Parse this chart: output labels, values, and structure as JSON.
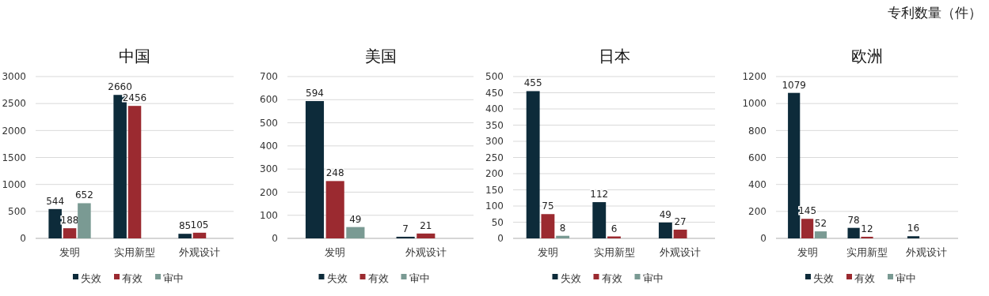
{
  "chart_data": [
    {
      "type": "bar",
      "title": "中国",
      "categories": [
        "发明",
        "实用新型",
        "外观设计"
      ],
      "series": [
        {
          "name": "失效",
          "color": "#0d2b3a",
          "values": [
            544,
            2660,
            85
          ]
        },
        {
          "name": "有效",
          "color": "#9b2a30",
          "values": [
            188,
            2456,
            105
          ]
        },
        {
          "name": "审中",
          "color": "#7a9a93",
          "values": [
            652,
            null,
            null
          ]
        }
      ],
      "ylim": [
        0,
        3000
      ],
      "yticks": [
        0,
        500,
        1000,
        1500,
        2000,
        2500,
        3000
      ],
      "grid": "y",
      "legend": "bottom",
      "data_labels": true
    },
    {
      "type": "bar",
      "title": "美国",
      "categories": [
        "发明",
        "外观设计"
      ],
      "series": [
        {
          "name": "失效",
          "color": "#0d2b3a",
          "values": [
            594,
            7
          ]
        },
        {
          "name": "有效",
          "color": "#9b2a30",
          "values": [
            248,
            21
          ]
        },
        {
          "name": "审中",
          "color": "#7a9a93",
          "values": [
            49,
            null
          ]
        }
      ],
      "ylim": [
        0,
        700
      ],
      "yticks": [
        0,
        100,
        200,
        300,
        400,
        500,
        600,
        700
      ],
      "grid": "y",
      "legend": "bottom",
      "data_labels": true
    },
    {
      "type": "bar",
      "title": "日本",
      "categories": [
        "发明",
        "实用新型",
        "外观设计"
      ],
      "series": [
        {
          "name": "失效",
          "color": "#0d2b3a",
          "values": [
            455,
            112,
            49
          ]
        },
        {
          "name": "有效",
          "color": "#9b2a30",
          "values": [
            75,
            6,
            27
          ]
        },
        {
          "name": "审中",
          "color": "#7a9a93",
          "values": [
            8,
            null,
            null
          ]
        }
      ],
      "ylim": [
        0,
        500
      ],
      "yticks": [
        0,
        50,
        100,
        150,
        200,
        250,
        300,
        350,
        400,
        450,
        500
      ],
      "grid": "y",
      "legend": "bottom",
      "data_labels": true
    },
    {
      "type": "bar",
      "title": "欧洲",
      "categories": [
        "发明",
        "实用新型",
        "外观设计"
      ],
      "series": [
        {
          "name": "失效",
          "color": "#0d2b3a",
          "values": [
            1079,
            78,
            16
          ]
        },
        {
          "name": "有效",
          "color": "#9b2a30",
          "values": [
            145,
            12,
            null
          ]
        },
        {
          "name": "审中",
          "color": "#7a9a93",
          "values": [
            52,
            null,
            null
          ]
        }
      ],
      "ylim": [
        0,
        1200
      ],
      "yticks": [
        0,
        200,
        400,
        600,
        800,
        1000,
        1200
      ],
      "grid": "y",
      "legend": "bottom",
      "data_labels": true,
      "annotations": [
        "专利数量（件）"
      ]
    }
  ]
}
